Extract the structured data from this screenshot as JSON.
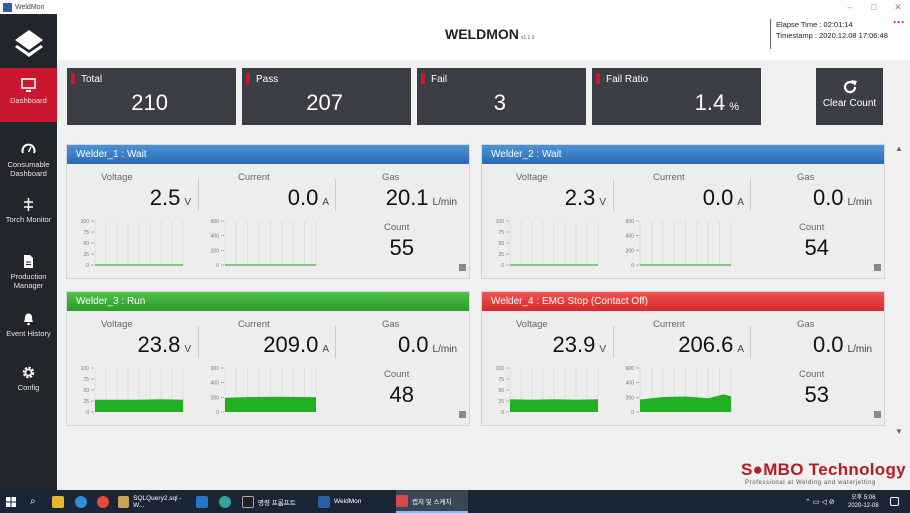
{
  "window": {
    "title": "WeldMon"
  },
  "sidebar": {
    "items": [
      {
        "label": "Dashboard",
        "icon": "monitor-icon"
      },
      {
        "label": "Consumable Dashboard",
        "icon": "gauge-icon"
      },
      {
        "label": "Torch Monitor",
        "icon": "torch-icon"
      },
      {
        "label": "Production Manager",
        "icon": "document-icon"
      },
      {
        "label": "Event History",
        "icon": "bell-icon"
      },
      {
        "label": "Config",
        "icon": "gear-icon"
      }
    ]
  },
  "header": {
    "title": "WELDMON",
    "version": "v1.1.0",
    "elapse": "Elapse Time : 02:01:14",
    "timestamp": "Timestamp : 2020.12.08 17:06:48"
  },
  "stats": [
    {
      "label": "Total",
      "value": "210",
      "unit": ""
    },
    {
      "label": "Pass",
      "value": "207",
      "unit": ""
    },
    {
      "label": "Fail",
      "value": "3",
      "unit": ""
    },
    {
      "label": "Fail Ratio",
      "value": "1.4",
      "unit": "%"
    }
  ],
  "clear_button": "Clear Count",
  "labels": {
    "voltage": "Voltage",
    "current": "Current",
    "gas": "Gas",
    "count": "Count",
    "v": "V",
    "a": "A",
    "lmin": "L/min"
  },
  "welders": [
    {
      "title": "Welder_1 : Wait",
      "status_color": "#2b6bb3",
      "voltage": "2.5",
      "current": "0.0",
      "gas": "20.1",
      "count": "55"
    },
    {
      "title": "Welder_2 : Wait",
      "status_color": "#2b6bb3",
      "voltage": "2.3",
      "current": "0.0",
      "gas": "0.0",
      "count": "54"
    },
    {
      "title": "Welder_3 : Run",
      "status_color": "#2d9a2a",
      "voltage": "23.8",
      "current": "209.0",
      "gas": "0.0",
      "count": "48"
    },
    {
      "title": "Welder_4 : EMG Stop (Contact Off)",
      "status_color": "#d72828",
      "voltage": "23.9",
      "current": "206.6",
      "gas": "0.0",
      "count": "53"
    }
  ],
  "chart_ticks": {
    "voltage": [
      "100",
      "75",
      "50",
      "25",
      "0"
    ],
    "current": [
      "600",
      "400",
      "200",
      "0"
    ]
  },
  "brand": {
    "name_red": "S",
    "name_mid": "MBO",
    "name_tail": " Technology",
    "tagline": "Professional at Welding and waterjetting"
  },
  "taskbar": {
    "items": [
      "SQLQuery2.sql - W...",
      "명령 프롬프트",
      "WeldMon",
      "캡처 및 스케치"
    ],
    "clock_time": "오후 5:06",
    "clock_date": "2020-12-08"
  }
}
